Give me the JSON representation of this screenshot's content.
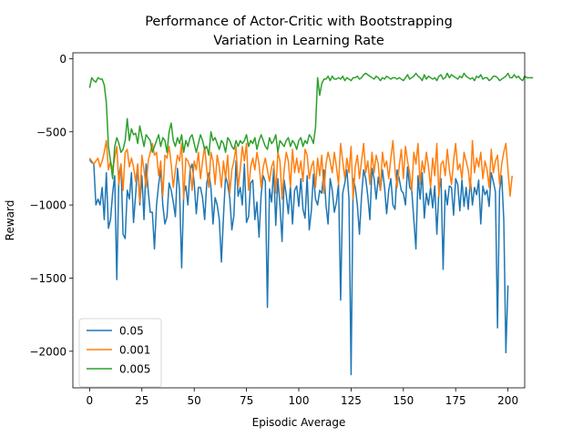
{
  "chart_data": {
    "type": "line",
    "title": [
      "Performance of Actor-Critic with Bootstrapping",
      "Variation in Learning Rate"
    ],
    "xlabel": "Episodic Average",
    "ylabel": "Reward",
    "xlim": [
      -8,
      208
    ],
    "ylim": [
      -2250,
      40
    ],
    "xticks": [
      0,
      25,
      50,
      75,
      100,
      125,
      150,
      175,
      200
    ],
    "yticks": [
      0,
      -500,
      -1000,
      -1500,
      -2000
    ],
    "xtick_labels": [
      "0",
      "25",
      "50",
      "75",
      "100",
      "125",
      "150",
      "175",
      "200"
    ],
    "ytick_labels": [
      "0",
      "−500",
      "−1000",
      "−1500",
      "−2000"
    ],
    "grid": false,
    "legend_position": "lower-left",
    "series": [
      {
        "name": "0.05",
        "color": "#1f77b4",
        "values": [
          -690,
          -710,
          -720,
          -1000,
          -960,
          -1000,
          -880,
          -1100,
          -780,
          -1160,
          -1100,
          -920,
          -800,
          -1510,
          -800,
          -720,
          -1200,
          -1230,
          -900,
          -960,
          -780,
          -1120,
          -930,
          -720,
          -1000,
          -800,
          -1100,
          -720,
          -900,
          -1050,
          -1050,
          -1300,
          -1000,
          -860,
          -760,
          -1000,
          -1130,
          -1080,
          -850,
          -900,
          -980,
          -1080,
          -750,
          -900,
          -1430,
          -920,
          -870,
          -1000,
          -760,
          -720,
          -850,
          -1060,
          -880,
          -880,
          -950,
          -1100,
          -850,
          -780,
          -880,
          -1130,
          -950,
          -1000,
          -1100,
          -1390,
          -1080,
          -800,
          -860,
          -950,
          -1170,
          -1070,
          -700,
          -940,
          -880,
          -1000,
          -720,
          -1120,
          -1080,
          -850,
          -830,
          -1100,
          -980,
          -1220,
          -930,
          -800,
          -840,
          -1700,
          -890,
          -980,
          -750,
          -1140,
          -820,
          -1000,
          -1250,
          -830,
          -930,
          -1060,
          -870,
          -1130,
          -900,
          -870,
          -1010,
          -820,
          -1030,
          -1090,
          -800,
          -1170,
          -1040,
          -790,
          -960,
          -1000,
          -900,
          -920,
          -760,
          -1000,
          -1130,
          -820,
          -900,
          -1050,
          -980,
          -860,
          -1650,
          -920,
          -850,
          -760,
          -960,
          -2160,
          -820,
          -880,
          -1000,
          -1200,
          -940,
          -760,
          -820,
          -940,
          -1100,
          -750,
          -820,
          -960,
          -810,
          -900,
          -760,
          -880,
          -1060,
          -900,
          -820,
          -1000,
          -1030,
          -760,
          -820,
          -900,
          -920,
          -1000,
          -740,
          -880,
          -900,
          -1100,
          -1300,
          -800,
          -960,
          -780,
          -1090,
          -920,
          -1000,
          -880,
          -1020,
          -870,
          -1200,
          -900,
          -820,
          -1440,
          -900,
          -1000,
          -870,
          -880,
          -1070,
          -820,
          -860,
          -1040,
          -830,
          -1010,
          -880,
          -1030,
          -820,
          -1000,
          -880,
          -930,
          -830,
          -1130,
          -870,
          -930,
          -900,
          -1010,
          -780,
          -840,
          -910,
          -1840,
          -900,
          -800,
          -1100,
          -2010,
          -1550
        ]
      },
      {
        "name": "0.001",
        "color": "#ff7f0e",
        "values": [
          -680,
          -700,
          -720,
          -700,
          -680,
          -740,
          -700,
          -640,
          -560,
          -760,
          -700,
          -760,
          -680,
          -600,
          -860,
          -720,
          -900,
          -640,
          -620,
          -740,
          -680,
          -740,
          -840,
          -720,
          -980,
          -660,
          -760,
          -880,
          -700,
          -640,
          -580,
          -660,
          -640,
          -800,
          -700,
          -940,
          -660,
          -680,
          -600,
          -720,
          -880,
          -760,
          -660,
          -700,
          -580,
          -960,
          -680,
          -700,
          -740,
          -900,
          -700,
          -760,
          -640,
          -820,
          -700,
          -600,
          -760,
          -880,
          -640,
          -700,
          -860,
          -660,
          -740,
          -880,
          -700,
          -820,
          -660,
          -920,
          -760,
          -700,
          -600,
          -880,
          -760,
          -600,
          -700,
          -580,
          -900,
          -740,
          -680,
          -760,
          -640,
          -720,
          -880,
          -740,
          -680,
          -760,
          -840,
          -740,
          -700,
          -920,
          -640,
          -700,
          -960,
          -760,
          -640,
          -700,
          -880,
          -620,
          -780,
          -680,
          -780,
          -700,
          -840,
          -620,
          -660,
          -820,
          -740,
          -700,
          -880,
          -680,
          -800,
          -660,
          -920,
          -720,
          -640,
          -700,
          -780,
          -640,
          -740,
          -860,
          -580,
          -700,
          -820,
          -680,
          -780,
          -600,
          -960,
          -740,
          -660,
          -820,
          -700,
          -580,
          -780,
          -700,
          -860,
          -640,
          -780,
          -660,
          -720,
          -900,
          -640,
          -740,
          -700,
          -820,
          -680,
          -560,
          -760,
          -880,
          -740,
          -620,
          -820,
          -600,
          -700,
          -780,
          -900,
          -640,
          -720,
          -580,
          -860,
          -700,
          -780,
          -640,
          -740,
          -880,
          -680,
          -800,
          -580,
          -940,
          -720,
          -700,
          -800,
          -620,
          -760,
          -860,
          -700,
          -580,
          -760,
          -720,
          -820,
          -640,
          -700,
          -760,
          -900,
          -560,
          -780,
          -680,
          -740,
          -640,
          -820,
          -700,
          -760,
          -880,
          -620,
          -780,
          -700,
          -660,
          -860,
          -720,
          -640,
          -580,
          -760,
          -940,
          -800
        ]
      },
      {
        "name": "0.005",
        "color": "#2ca02c",
        "values": [
          -200,
          -130,
          -150,
          -160,
          -130,
          -140,
          -140,
          -180,
          -300,
          -600,
          -700,
          -820,
          -600,
          -540,
          -580,
          -640,
          -620,
          -560,
          -410,
          -560,
          -480,
          -520,
          -510,
          -580,
          -460,
          -530,
          -600,
          -520,
          -540,
          -560,
          -640,
          -600,
          -560,
          -520,
          -600,
          -540,
          -560,
          -640,
          -500,
          -440,
          -560,
          -600,
          -540,
          -580,
          -520,
          -640,
          -560,
          -600,
          -540,
          -520,
          -580,
          -640,
          -580,
          -520,
          -560,
          -620,
          -600,
          -660,
          -500,
          -560,
          -540,
          -580,
          -620,
          -560,
          -580,
          -640,
          -540,
          -560,
          -600,
          -620,
          -560,
          -600,
          -560,
          -580,
          -560,
          -520,
          -600,
          -560,
          -580,
          -540,
          -620,
          -560,
          -520,
          -560,
          -600,
          -620,
          -540,
          -580,
          -560,
          -520,
          -640,
          -560,
          -580,
          -600,
          -560,
          -540,
          -600,
          -560,
          -580,
          -620,
          -560,
          -540,
          -600,
          -560,
          -580,
          -520,
          -540,
          -580,
          -470,
          -130,
          -250,
          -170,
          -140,
          -140,
          -120,
          -150,
          -120,
          -140,
          -140,
          -130,
          -140,
          -120,
          -150,
          -130,
          -140,
          -150,
          -130,
          -130,
          -120,
          -140,
          -130,
          -110,
          -100,
          -110,
          -120,
          -130,
          -140,
          -120,
          -130,
          -150,
          -130,
          -140,
          -120,
          -130,
          -140,
          -130,
          -130,
          -140,
          -130,
          -140,
          -150,
          -130,
          -110,
          -140,
          -130,
          -120,
          -100,
          -120,
          -130,
          -150,
          -110,
          -140,
          -120,
          -130,
          -140,
          -130,
          -150,
          -120,
          -110,
          -140,
          -130,
          -100,
          -130,
          -110,
          -120,
          -130,
          -140,
          -120,
          -130,
          -100,
          -120,
          -130,
          -140,
          -130,
          -150,
          -120,
          -130,
          -110,
          -140,
          -130,
          -130,
          -150,
          -140,
          -120,
          -120,
          -130,
          -150,
          -140,
          -130,
          -120,
          -100,
          -130,
          -130,
          -110,
          -130,
          -120,
          -140,
          -150,
          -120,
          -130,
          -130,
          -130,
          -130
        ]
      }
    ]
  }
}
